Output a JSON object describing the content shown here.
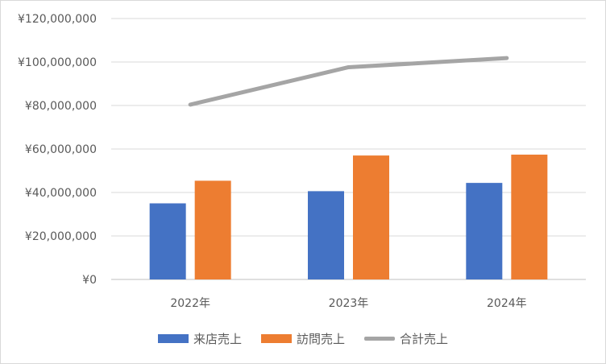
{
  "chart_data": {
    "type": "bar",
    "categories": [
      "2022年",
      "2023年",
      "2024年"
    ],
    "series": [
      {
        "name": "来店売上",
        "kind": "bar",
        "color": "#4472C4",
        "values": [
          35000000,
          40600000,
          44400000
        ]
      },
      {
        "name": "訪問売上",
        "kind": "bar",
        "color": "#ED7D31",
        "values": [
          45400000,
          57000000,
          57400000
        ]
      },
      {
        "name": "合計売上",
        "kind": "line",
        "color": "#A5A5A5",
        "values": [
          80400000,
          97600000,
          101800000
        ]
      }
    ],
    "y_ticks": [
      "¥0",
      "¥20,000,000",
      "¥40,000,000",
      "¥60,000,000",
      "¥80,000,000",
      "¥100,000,000",
      "¥120,000,000"
    ],
    "ylim": [
      0,
      120000000
    ],
    "grid": true,
    "legend_position": "bottom"
  }
}
